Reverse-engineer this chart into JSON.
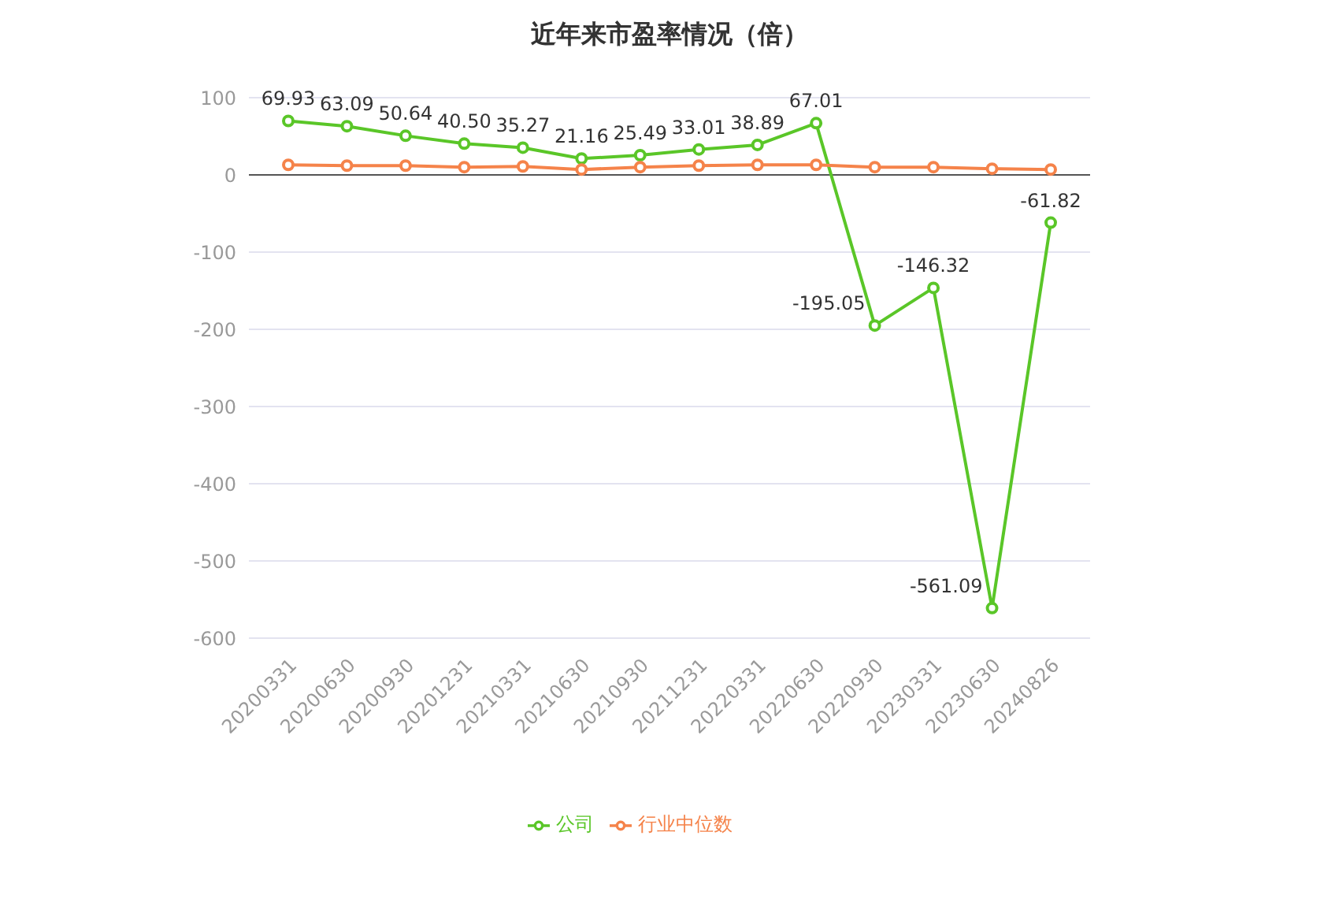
{
  "chart_data": {
    "type": "line",
    "title": "近年来市盈率情况（倍）",
    "categories": [
      "20200331",
      "20200630",
      "20200930",
      "20201231",
      "20210331",
      "20210630",
      "20210930",
      "20211231",
      "20220331",
      "20220630",
      "20220930",
      "20230331",
      "20230630",
      "20240826"
    ],
    "series": [
      {
        "name": "公司",
        "color": "#5ac628",
        "values": [
          69.93,
          63.09,
          50.64,
          40.5,
          35.27,
          21.16,
          25.49,
          33.01,
          38.89,
          67.01,
          -195.05,
          -146.32,
          -561.09,
          -61.82
        ],
        "value_labels": [
          "69.93",
          "63.09",
          "50.64",
          "40.50",
          "35.27",
          "21.16",
          "25.49",
          "33.01",
          "38.89",
          "67.01",
          "-195.05",
          "-146.32",
          "-561.09",
          "-61.82"
        ]
      },
      {
        "name": "行业中位数",
        "color": "#f5834a",
        "values": [
          13,
          12,
          12,
          10,
          11,
          7,
          10,
          12,
          13,
          13,
          10,
          10,
          8,
          7
        ]
      }
    ],
    "ylim": [
      -600,
      100
    ],
    "yticks": [
      -600,
      -500,
      -400,
      -300,
      -200,
      -100,
      0,
      100
    ],
    "grid": "y",
    "legend": "bottom",
    "marker": "circle",
    "line_style": "solid"
  }
}
